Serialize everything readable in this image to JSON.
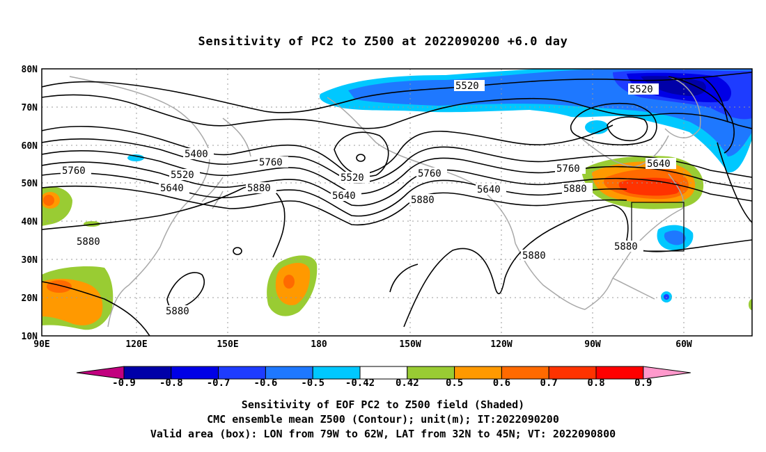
{
  "title": "Sensitivity of PC2 to Z500 at 2022090200 +6.0 day",
  "map": {
    "lat_ticks": [
      "80N",
      "70N",
      "60N",
      "50N",
      "40N",
      "30N",
      "20N",
      "10N"
    ],
    "lon_ticks": [
      "90E",
      "120E",
      "150E",
      "180",
      "150W",
      "120W",
      "90W",
      "60W"
    ],
    "contour_labels": [
      "5520",
      "5520",
      "5400",
      "5520",
      "5640",
      "5760",
      "5880",
      "5520",
      "5640",
      "5760",
      "5880",
      "5640",
      "5760",
      "5880",
      "5640",
      "5760",
      "5880",
      "5880",
      "5880",
      "5880"
    ],
    "valid_box": {
      "lon_from": "79W",
      "lon_to": "62W",
      "lat_from": "32N",
      "lat_to": "45N"
    }
  },
  "colorbar": {
    "labels": [
      "-0.9",
      "-0.8",
      "-0.7",
      "-0.6",
      "-0.5",
      "-0.42",
      "0.42",
      "0.5",
      "0.6",
      "0.7",
      "0.8",
      "0.9"
    ],
    "colors": [
      "#c2007f",
      "#0000a8",
      "#0000e6",
      "#1e3cff",
      "#1e78ff",
      "#00c8ff",
      "#ffffff",
      "#99cc33",
      "#ff9900",
      "#ff6a00",
      "#ff3300",
      "#ff0000",
      "#ff99cc"
    ]
  },
  "captions": {
    "line1": "Sensitivity of EOF PC2 to Z500 field (Shaded)",
    "line2": "CMC ensemble mean Z500 (Contour); unit(m); IT:2022090200",
    "line3": "Valid area (box): LON from 79W to 62W, LAT from 32N to 45N; VT: 2022090800"
  }
}
